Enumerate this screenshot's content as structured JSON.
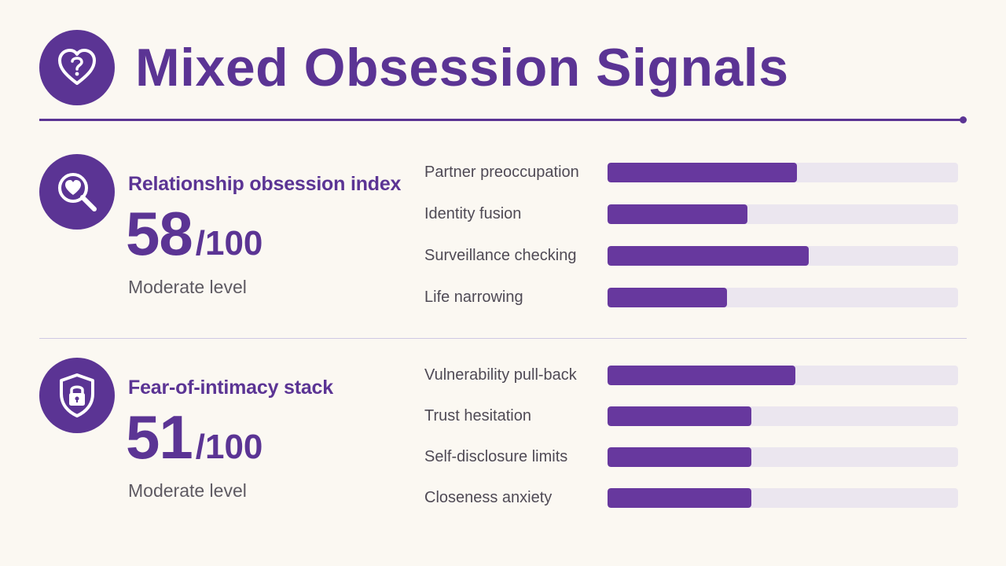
{
  "title": "Mixed Obsession Signals",
  "header_icon": "heart-question-icon",
  "colors": {
    "accent": "#5b3494",
    "bar_fill": "#67389e",
    "bar_track": "#ebe6ef",
    "background": "#fbf8f2"
  },
  "sections": [
    {
      "icon": "magnifier-heart-icon",
      "label": "Relationship obsession index",
      "score": "58",
      "max": "/100",
      "level": "Moderate level",
      "factors": [
        {
          "label": "Partner preoccupation",
          "value": 0.54
        },
        {
          "label": "Identity fusion",
          "value": 0.4
        },
        {
          "label": "Surveillance checking",
          "value": 0.575
        },
        {
          "label": "Life narrowing",
          "value": 0.34
        }
      ]
    },
    {
      "icon": "shield-lock-icon",
      "label": "Fear-of-intimacy stack",
      "score": "51",
      "max": "/100",
      "level": "Moderate level",
      "factors": [
        {
          "label": "Vulnerability pull-back",
          "value": 0.535
        },
        {
          "label": "Trust hesitation",
          "value": 0.41
        },
        {
          "label": "Self-disclosure limits",
          "value": 0.41
        },
        {
          "label": "Closeness anxiety",
          "value": 0.41
        }
      ]
    }
  ]
}
